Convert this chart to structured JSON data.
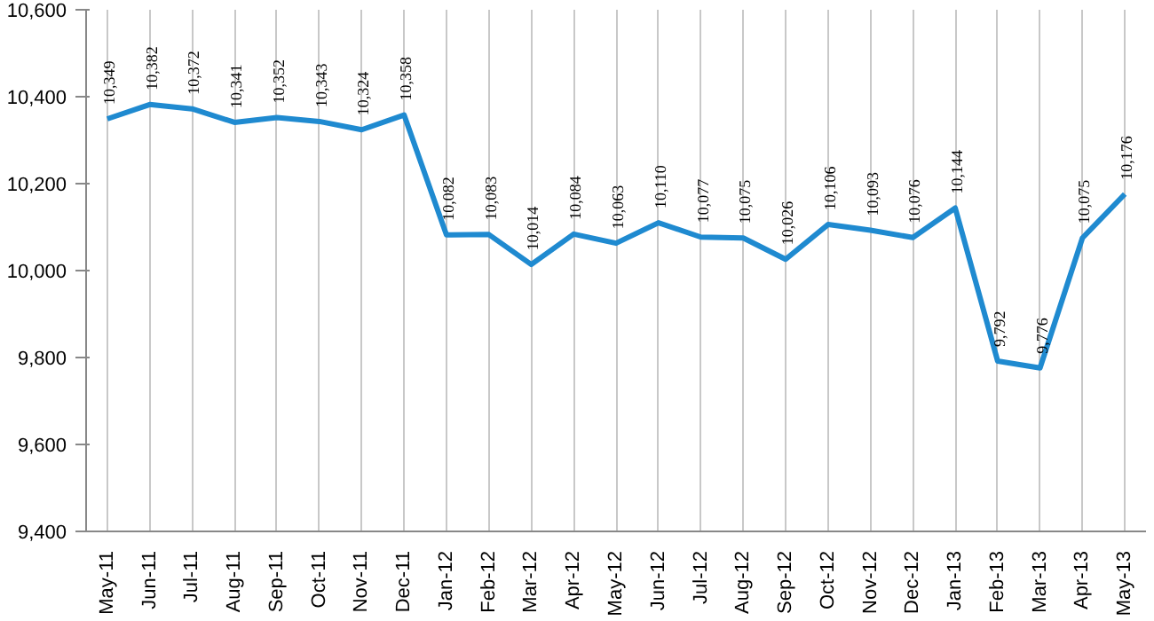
{
  "chart_data": {
    "type": "line",
    "categories": [
      "May-11",
      "Jun-11",
      "Jul-11",
      "Aug-11",
      "Sep-11",
      "Oct-11",
      "Nov-11",
      "Dec-11",
      "Jan-12",
      "Feb-12",
      "Mar-12",
      "Apr-12",
      "May-12",
      "Jun-12",
      "Jul-12",
      "Aug-12",
      "Sep-12",
      "Oct-12",
      "Nov-12",
      "Dec-12",
      "Jan-13",
      "Feb-13",
      "Mar-13",
      "Apr-13",
      "May-13"
    ],
    "series": [
      {
        "color": "#1f8ad0",
        "values": [
          10349,
          10382,
          10372,
          10341,
          10352,
          10343,
          10324,
          10358,
          10082,
          10083,
          10014,
          10084,
          10063,
          10110,
          10077,
          10075,
          10026,
          10106,
          10093,
          10076,
          10144,
          9792,
          9776,
          10075,
          10176
        ],
        "value_labels": [
          "10,349",
          "10,382",
          "10,372",
          "10,341",
          "10,352",
          "10,343",
          "10,324",
          "10,358",
          "10,082",
          "10,083",
          "10,014",
          "10,084",
          "10,063",
          "10,110",
          "10,077",
          "10,075",
          "10,026",
          "10,106",
          "10,093",
          "10,076",
          "10,144",
          "9,792",
          "9,776",
          "10,075",
          "10,176"
        ]
      }
    ],
    "ylim": [
      9400,
      10600
    ],
    "yticks": [
      {
        "value": 9400,
        "label": "9,400"
      },
      {
        "value": 9600,
        "label": "9,600"
      },
      {
        "value": 9800,
        "label": "9,800"
      },
      {
        "value": 10000,
        "label": "10,000"
      },
      {
        "value": 10200,
        "label": "10,200"
      },
      {
        "value": 10400,
        "label": "10,400"
      },
      {
        "value": 10600,
        "label": "10,600"
      }
    ],
    "grid": "x",
    "marker": "none",
    "line_style": "solid"
  }
}
